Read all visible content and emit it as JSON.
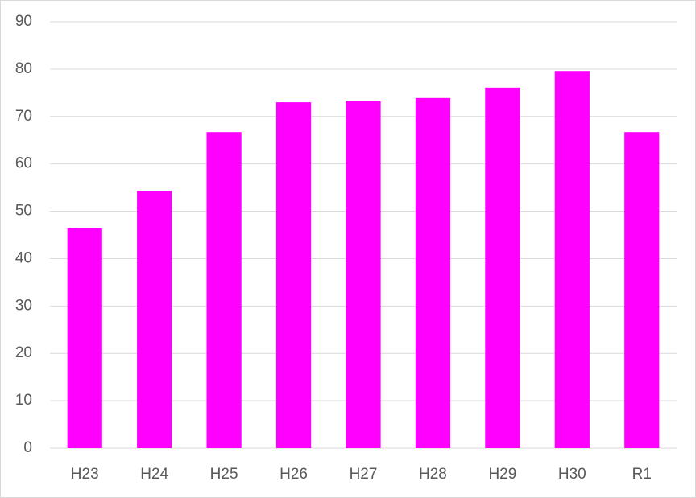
{
  "chart_data": {
    "type": "bar",
    "categories": [
      "H23",
      "H24",
      "H25",
      "H26",
      "H27",
      "H28",
      "H29",
      "H30",
      "R1"
    ],
    "values": [
      46.4,
      54.3,
      66.7,
      73.0,
      73.2,
      73.9,
      76.1,
      79.6,
      66.7
    ],
    "color": "#ff00ff",
    "ylim": [
      0,
      90
    ],
    "yticks": [
      0,
      10,
      20,
      30,
      40,
      50,
      60,
      70,
      80,
      90
    ],
    "grid": true
  }
}
